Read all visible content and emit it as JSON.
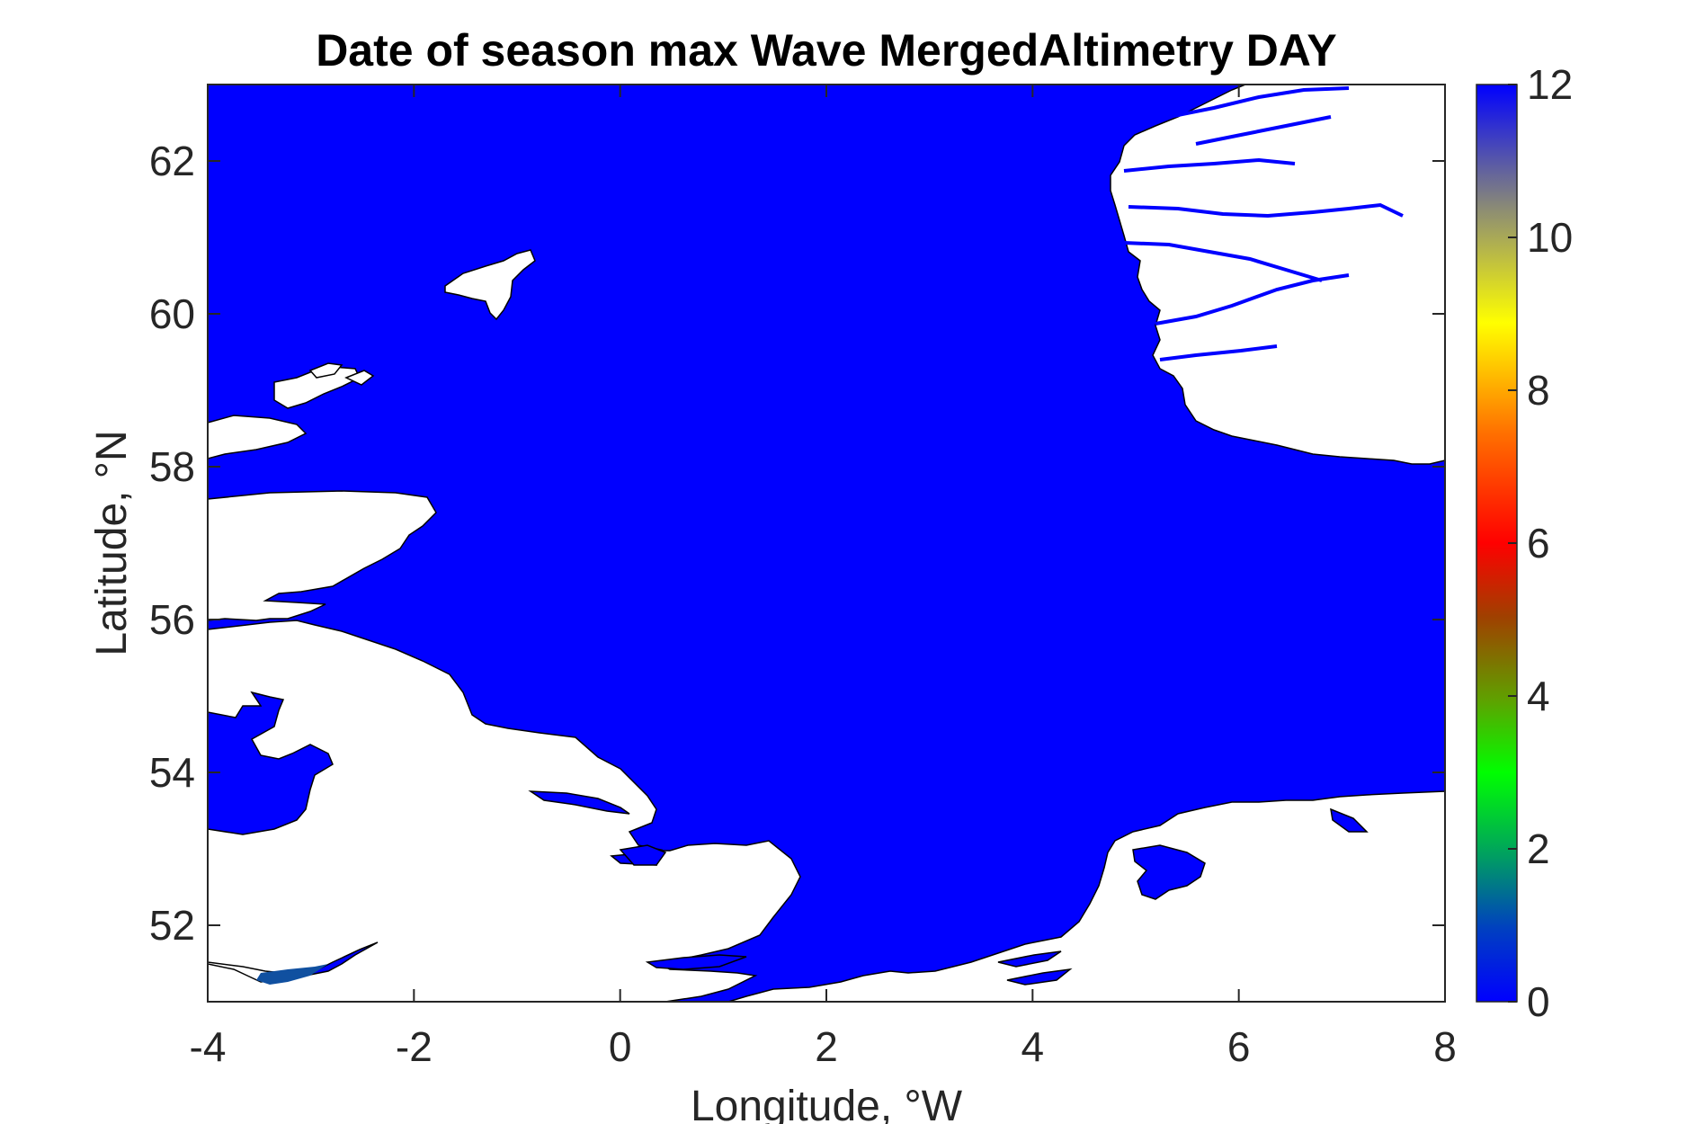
{
  "chart_data": {
    "type": "heatmap",
    "title": "Date of season max Wave MergedAltimetry DAY",
    "xlabel": "Longitude, °W",
    "ylabel": "Latitude, °N",
    "xlim": [
      -4,
      8
    ],
    "ylim": [
      51,
      63
    ],
    "x_ticks": [
      -4,
      -2,
      0,
      2,
      4,
      6,
      8
    ],
    "x_tick_labels": [
      "-4",
      "-2",
      "0",
      "2",
      "4",
      "6",
      "8"
    ],
    "y_ticks": [
      52,
      54,
      56,
      58,
      60,
      62
    ],
    "y_tick_labels": [
      "52",
      "54",
      "56",
      "58",
      "60",
      "62"
    ],
    "grid": false,
    "colorbar": {
      "range": [
        0,
        12
      ],
      "ticks": [
        0,
        2,
        4,
        6,
        8,
        10,
        12
      ],
      "tick_labels": [
        "0",
        "2",
        "4",
        "6",
        "8",
        "10",
        "12"
      ],
      "colormap": [
        "#0000ff",
        "#00a000",
        "#00ff00",
        "#908000",
        "#ff0000",
        "#ff9000",
        "#ffff00",
        "#909070",
        "#0000ff"
      ]
    },
    "field": {
      "sea_value": 0,
      "sea_color": "#0000ff",
      "land_color": "#ffffff",
      "coast_color": "#000000"
    }
  }
}
